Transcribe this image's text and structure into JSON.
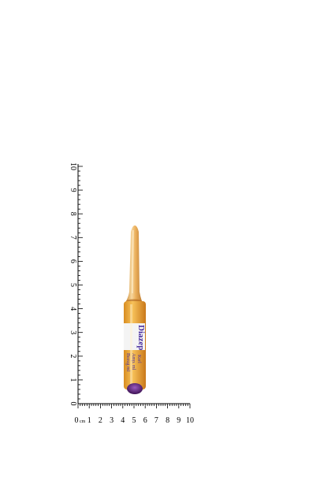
{
  "scene": {
    "subject": "Glass ampoule with amber liquid and label",
    "background_color": "#ffffff"
  },
  "ruler": {
    "horizontal_labels": [
      "0",
      "1",
      "2",
      "3",
      "4",
      "5",
      "6",
      "7",
      "8",
      "9",
      "10"
    ],
    "horizontal_unit": "cm",
    "vertical_labels": [
      "0",
      "1",
      "2",
      "3",
      "4",
      "5",
      "6",
      "7",
      "8",
      "9",
      "10"
    ],
    "color": "#000000"
  },
  "ampoule": {
    "label_text_main": "Diazep",
    "label_text_lines": [
      "Kerl",
      "Amp. ml",
      "Bezug ml"
    ],
    "liquid_color": "#e8a23a",
    "glass_tint": "#f2c27a",
    "label_color": "#f4f4f4",
    "cap_color": "#6a2c8c"
  }
}
